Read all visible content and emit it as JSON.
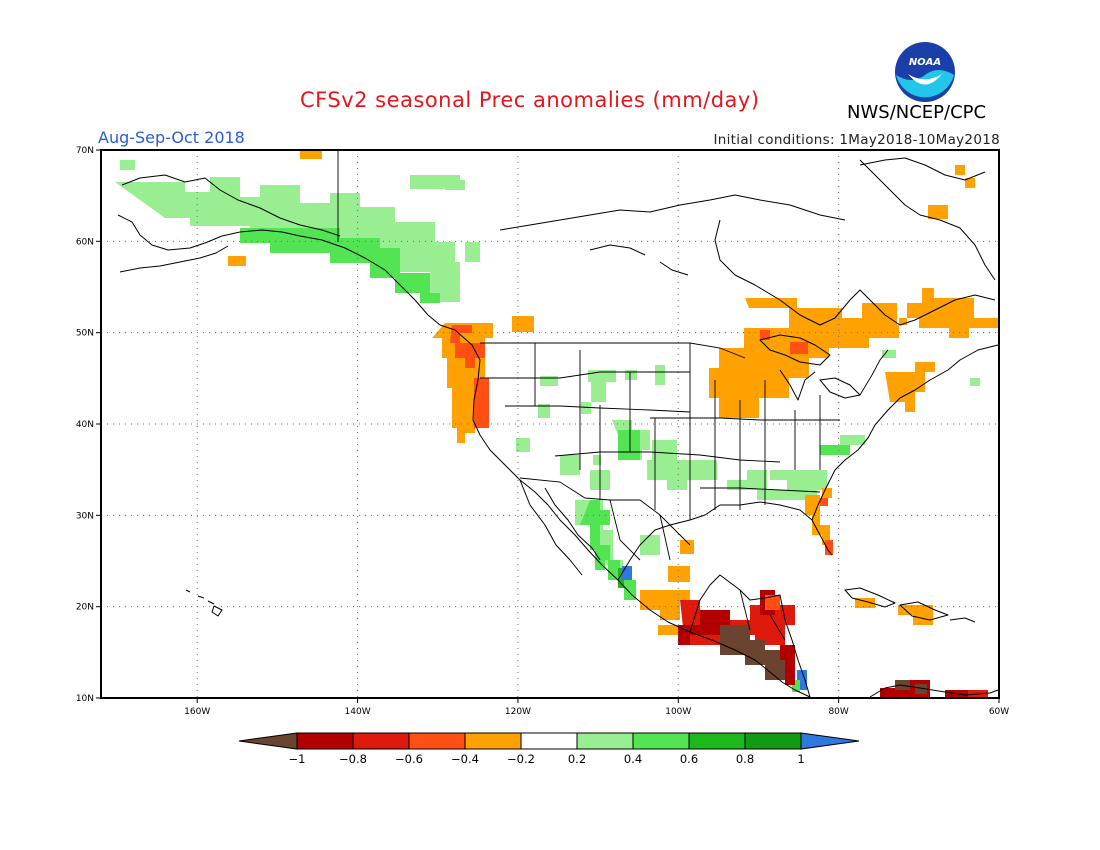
{
  "title": "CFSv2 seasonal Prec anomalies (mm/day)",
  "season": "Aug-Sep-Oct 2018",
  "initial_conditions": "Initial conditions: 1May2018-10May2018",
  "agency": "NWS/NCEP/CPC",
  "logo_text": "NOAA",
  "map": {
    "lon_labels": [
      "160W",
      "140W",
      "120W",
      "100W",
      "80W",
      "60W"
    ],
    "lat_labels": [
      "70N",
      "60N",
      "50N",
      "40N",
      "30N",
      "20N",
      "10N"
    ]
  },
  "colorbar": {
    "labels": [
      "-1",
      "-0.8",
      "-0.6",
      "-0.4",
      "-0.2",
      "0.2",
      "0.4",
      "0.6",
      "0.8",
      "1"
    ],
    "colors": [
      "#6b4431",
      "#b20000",
      "#dd1a0b",
      "#ff4f13",
      "#ffa100",
      "#ffffff",
      "#98ee90",
      "#52e452",
      "#1cb81c",
      "#139a13",
      "#2f78e0"
    ]
  },
  "colors": {
    "title": "#e8141c",
    "season": "#2a5bd7",
    "dry1": "#ffa100",
    "dry2": "#ff4f13",
    "dry3": "#dd1a0b",
    "dry4": "#b20000",
    "dry5": "#6b4431",
    "wet1": "#98ee90",
    "wet2": "#52e452",
    "wet3": "#1cb81c",
    "wet5": "#2f78e0"
  }
}
